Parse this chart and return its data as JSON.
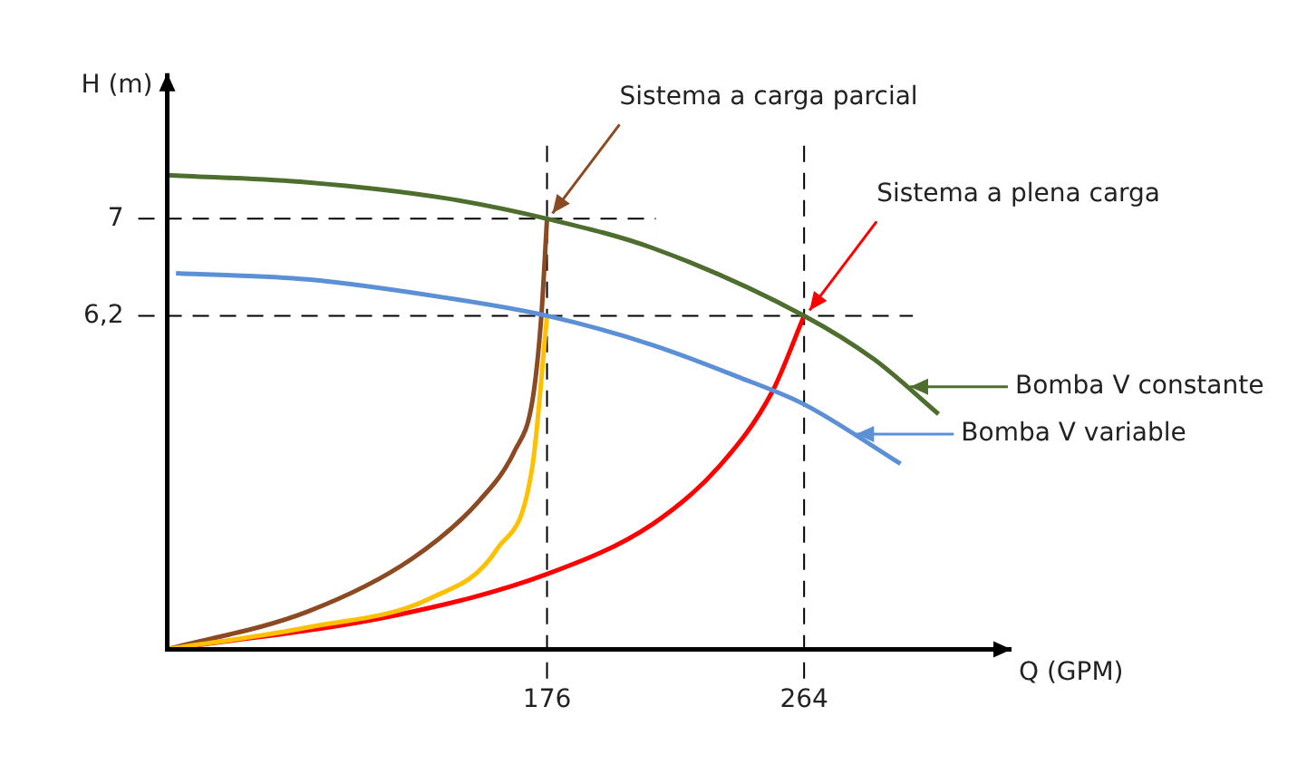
{
  "chart_data": {
    "type": "line",
    "xlabel": "Q (GPM)",
    "ylabel": "H (m)",
    "xlim": [
      46,
      335
    ],
    "ylim": [
      3.45,
      8.2
    ],
    "xticks": [
      176,
      264
    ],
    "yticks": [
      {
        "value": 6.2,
        "label": "6,2"
      },
      7
    ],
    "grid": false,
    "legend": "right",
    "marker": "none",
    "line_style": "solid",
    "series": [
      {
        "name": "Bomba V constante",
        "color": "#4e6e2e",
        "x": [
          46,
          94,
          141,
          176,
          212,
          264,
          288,
          310
        ],
        "values": [
          7.36,
          7.3,
          7.17,
          7.0,
          6.76,
          6.2,
          5.84,
          5.39
        ]
      },
      {
        "name": "Bomba V variable",
        "color": "#5b8fd6",
        "x": [
          49,
          94,
          141,
          176,
          212,
          241,
          264,
          297
        ],
        "values": [
          6.55,
          6.5,
          6.35,
          6.2,
          5.96,
          5.7,
          5.47,
          4.98
        ]
      },
      {
        "color": "#ffc000",
        "x": [
          46,
          94,
          136,
          159,
          171,
          176
        ],
        "values": [
          3.45,
          3.63,
          3.87,
          4.28,
          4.96,
          6.2
        ]
      },
      {
        "color": "#8b4a22",
        "x": [
          46,
          94,
          130,
          153,
          165,
          171,
          174,
          176
        ],
        "values": [
          3.45,
          3.76,
          4.2,
          4.68,
          5.09,
          5.5,
          6.18,
          7.0
        ]
      },
      {
        "color": "#ff0000",
        "x": [
          46,
          124,
          176,
          212,
          235,
          253,
          264
        ],
        "values": [
          3.45,
          3.73,
          4.07,
          4.48,
          4.96,
          5.57,
          6.2
        ]
      }
    ],
    "ref_lines": [
      {
        "axis": "x",
        "value": 176,
        "line_style": "dashed",
        "color": "#000000"
      },
      {
        "axis": "x",
        "value": 264,
        "line_style": "dashed",
        "color": "#000000"
      },
      {
        "axis": "y",
        "value": 7,
        "line_style": "dashed",
        "color": "#000000"
      },
      {
        "axis": "y",
        "value": 6.2,
        "line_style": "dashed",
        "color": "#000000"
      }
    ],
    "annotations": [
      {
        "text": "Sistema a carga parcial",
        "x": 176,
        "y": 7
      },
      {
        "text": "Sistema a plena carga",
        "x": 264,
        "y": 6.2
      }
    ]
  }
}
